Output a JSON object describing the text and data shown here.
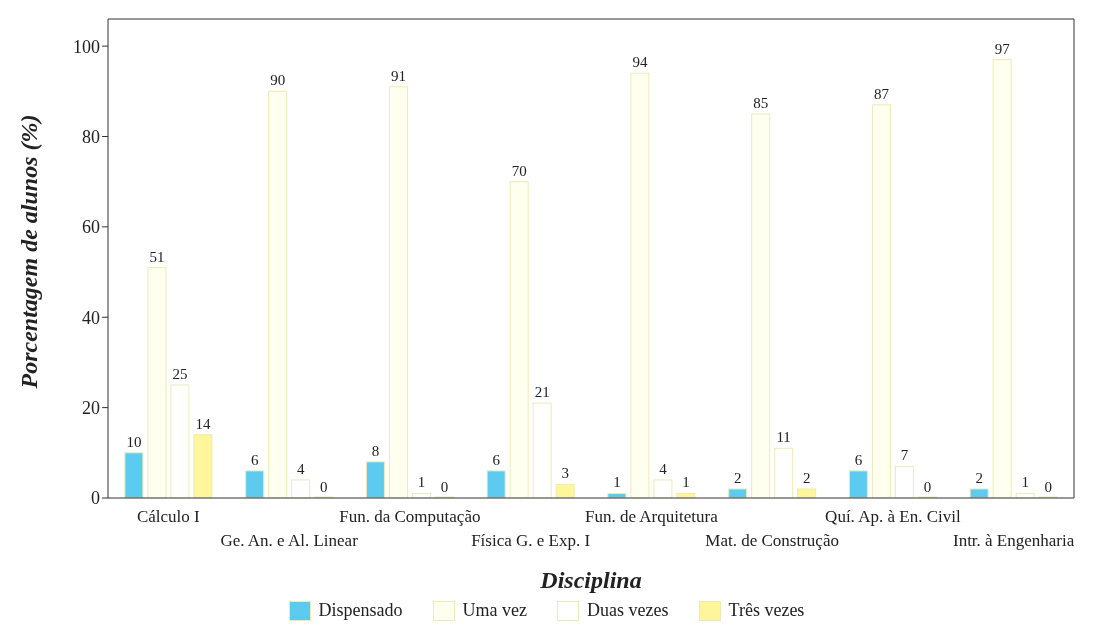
{
  "chart_data": {
    "type": "bar",
    "xlabel": "Disciplina",
    "ylabel": "Porcentagem de alunos (%)",
    "categories": [
      "Cálculo I",
      "Ge. An. e Al. Linear",
      "Fun. da Computação",
      "Física G. e Exp. I",
      "Fun. de Arquitetura",
      "Mat. de Construção",
      "Quí. Ap. à En. Civil",
      "Intr. à  Engenharia"
    ],
    "series": [
      {
        "name": "Dispensado",
        "color": "#5ccbef",
        "values": [
          10,
          6,
          8,
          6,
          1,
          2,
          6,
          2
        ]
      },
      {
        "name": "Uma vez",
        "color": "#fffff0",
        "values": [
          51,
          90,
          91,
          70,
          94,
          85,
          87,
          97
        ]
      },
      {
        "name": "Duas vezes",
        "color": "#ffffff",
        "values": [
          25,
          4,
          1,
          21,
          4,
          11,
          7,
          1
        ]
      },
      {
        "name": "Três vezes",
        "color": "#fff59a",
        "values": [
          14,
          0,
          0,
          3,
          1,
          2,
          0,
          0
        ]
      }
    ],
    "ylim": [
      0,
      106
    ],
    "yticks": [
      0,
      20,
      40,
      60,
      80,
      100
    ],
    "grid": false,
    "legend": "bottom",
    "data_labels": true
  }
}
